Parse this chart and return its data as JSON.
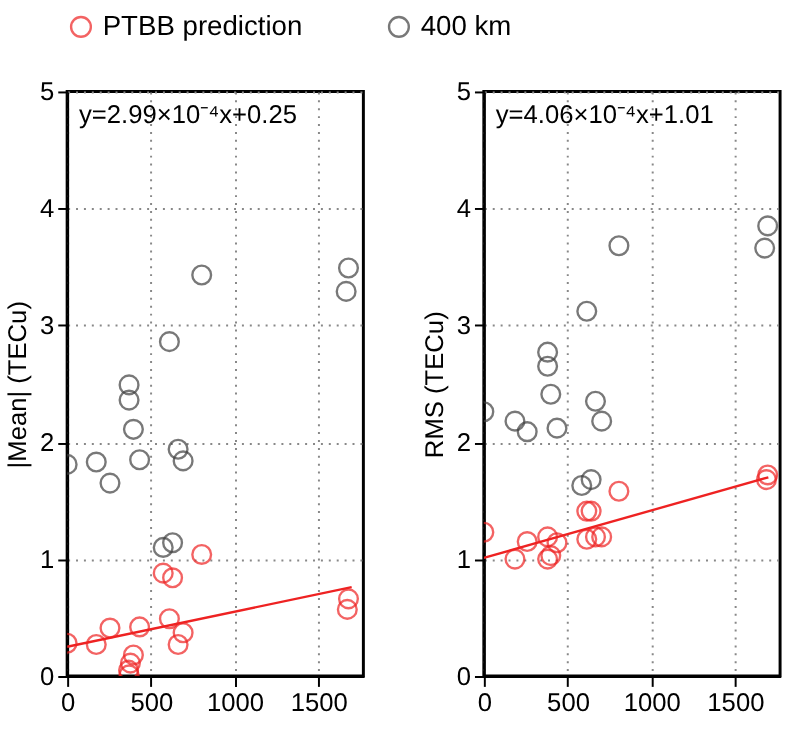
{
  "chart_data": [
    {
      "type": "scatter",
      "ylabel": "|Mean| (TECu)",
      "xlim": [
        0,
        1770
      ],
      "ylim": [
        0,
        5
      ],
      "xticks": [
        0,
        500,
        1000,
        1500
      ],
      "yticks": [
        0,
        1,
        2,
        3,
        4,
        5
      ],
      "grid": true,
      "legend": "top",
      "marker": "circle",
      "annotations": [
        "y=2.99×10⁻⁴x+0.25"
      ],
      "series": [
        {
          "name": "PTBB prediction",
          "color": "#ee2222",
          "x": [
            0,
            174,
            256,
            396,
            378,
            367,
            370,
            433,
            611,
            574,
            630,
            663,
            693,
            804,
            1681,
            1674
          ],
          "values": [
            0.28,
            0.27,
            0.41,
            0.18,
            0.11,
            0.05,
            0.01,
            0.42,
            0.49,
            0.88,
            0.84,
            0.27,
            0.37,
            1.04,
            0.66,
            0.57
          ]
        },
        {
          "name": "400  km",
          "color": "#404040",
          "x": [
            0,
            174,
            256,
            370,
            370,
            396,
            433,
            804,
            611,
            663,
            693,
            574,
            630,
            1681,
            1667
          ],
          "values": [
            1.81,
            1.83,
            1.65,
            2.49,
            2.36,
            2.11,
            1.85,
            3.43,
            2.86,
            1.94,
            1.84,
            1.1,
            1.14,
            3.49,
            3.29
          ]
        },
        {
          "type": "line",
          "color": "#ee2222",
          "x": [
            0,
            1700
          ],
          "values": [
            0.25,
            0.76
          ],
          "marker": "none"
        }
      ]
    },
    {
      "type": "scatter",
      "ylabel": "RMS (TECu)",
      "xlim": [
        0,
        1770
      ],
      "ylim": [
        0,
        5
      ],
      "xticks": [
        0,
        500,
        1000,
        1500
      ],
      "yticks": [
        0,
        1,
        2,
        3,
        4,
        5
      ],
      "grid": true,
      "legend": "top",
      "marker": "circle",
      "annotations": [
        "y=4.06×10⁻⁴x+1.01"
      ],
      "series": [
        {
          "name": "PTBB prediction",
          "color": "#ee2222",
          "x": [
            0,
            186,
            259,
            381,
            381,
            400,
            437,
            615,
            641,
            615,
            667,
            704,
            807,
            1696,
            1689
          ],
          "values": [
            1.23,
            1.0,
            1.15,
            1.19,
            1.0,
            1.03,
            1.14,
            1.41,
            1.41,
            1.17,
            1.19,
            1.19,
            1.58,
            1.72,
            1.68
          ]
        },
        {
          "name": "400  km",
          "color": "#404040",
          "x": [
            0,
            186,
            259,
            381,
            381,
            400,
            437,
            807,
            615,
            667,
            704,
            585,
            641,
            1696,
            1678
          ],
          "values": [
            2.26,
            2.18,
            2.09,
            2.77,
            2.65,
            2.41,
            2.12,
            3.68,
            3.12,
            2.35,
            2.18,
            1.63,
            1.68,
            3.85,
            3.66
          ]
        },
        {
          "type": "line",
          "color": "#ee2222",
          "x": [
            0,
            1700
          ],
          "values": [
            1.01,
            1.7
          ],
          "marker": "none"
        }
      ]
    }
  ]
}
